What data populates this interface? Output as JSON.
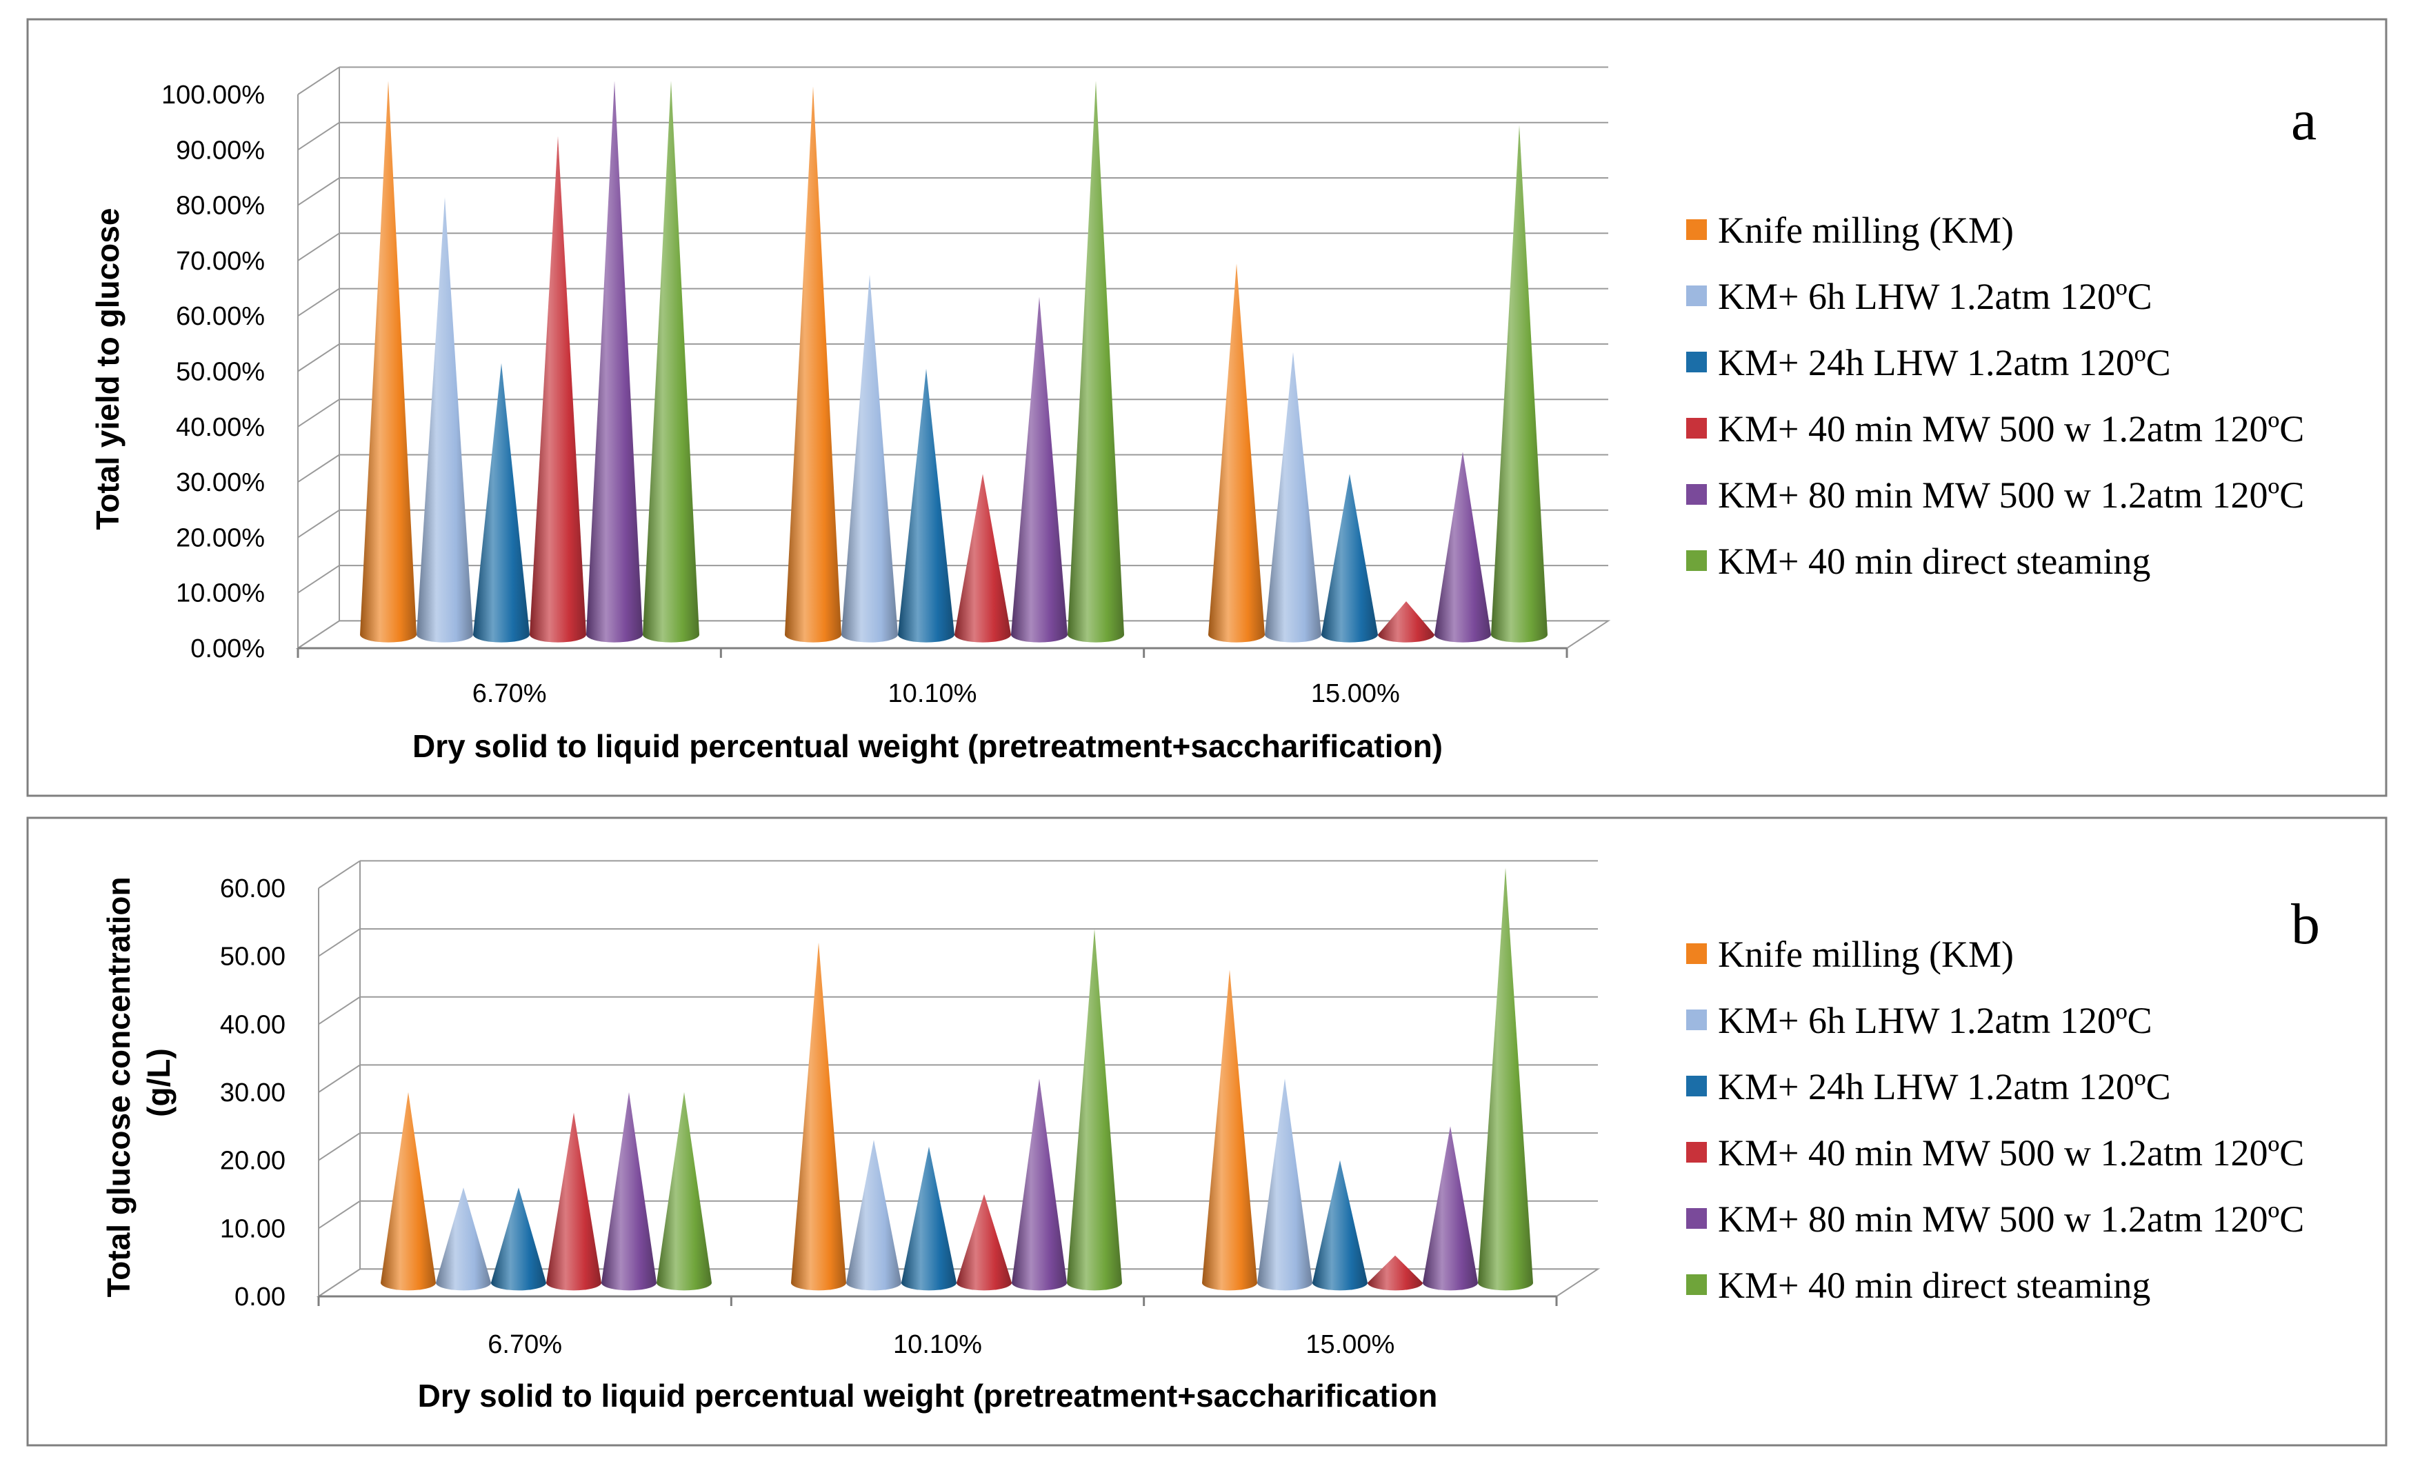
{
  "colors": {
    "Knife milling (KM)": "#F0821E",
    "KM+ 6h LHW 1.2atm 120ºC": "#9DB8E0",
    "KM+ 24h LHW 1.2atm 120ºC": "#1B6EA8",
    "KM+ 40 min MW 500 w 1.2atm 120ºC": "#C8323A",
    "KM+ 80 min MW 500 w 1.2atm 120ºC": "#7A4A9A",
    "KM+ 40 min direct steaming": "#6FA43A",
    "grid": "#9a9a9a",
    "frame": "#7f7f7f"
  },
  "chart_data": [
    {
      "type": "bar",
      "panel_label": "a",
      "categories": [
        "6.70%",
        "10.10%",
        "15.00%"
      ],
      "series": [
        {
          "name": "Knife milling (KM)",
          "values": [
            1.0,
            0.99,
            0.67
          ]
        },
        {
          "name": "KM+ 6h LHW 1.2atm 120ºC",
          "values": [
            0.79,
            0.65,
            0.51
          ]
        },
        {
          "name": "KM+ 24h LHW 1.2atm 120ºC",
          "values": [
            0.49,
            0.48,
            0.29
          ]
        },
        {
          "name": "KM+ 40 min MW 500 w 1.2atm 120ºC",
          "values": [
            0.9,
            0.29,
            0.06
          ]
        },
        {
          "name": "KM+ 80 min MW 500 w 1.2atm 120ºC",
          "values": [
            1.0,
            0.61,
            0.33
          ]
        },
        {
          "name": "KM+ 40 min direct steaming",
          "values": [
            1.0,
            1.0,
            0.92
          ]
        }
      ],
      "ylim": [
        0,
        1
      ],
      "yticks": [
        "0.00%",
        "10.00%",
        "20.00%",
        "30.00%",
        "40.00%",
        "50.00%",
        "60.00%",
        "70.00%",
        "80.00%",
        "90.00%",
        "100.00%"
      ],
      "ylabel": "Total yield to glucose",
      "xlabel": "Dry solid to liquid percentual weight (pretreatment+saccharification)",
      "legend": "right"
    },
    {
      "type": "bar",
      "panel_label": "b",
      "categories": [
        "6.70%",
        "10.10%",
        "15.00%"
      ],
      "series": [
        {
          "name": "Knife milling (KM)",
          "values": [
            28,
            50,
            46
          ]
        },
        {
          "name": "KM+ 6h LHW 1.2atm 120ºC",
          "values": [
            14,
            21,
            30
          ]
        },
        {
          "name": "KM+ 24h LHW 1.2atm 120ºC",
          "values": [
            14,
            20,
            18
          ]
        },
        {
          "name": "KM+ 40 min MW 500 w 1.2atm 120ºC",
          "values": [
            25,
            13,
            4
          ]
        },
        {
          "name": "KM+ 80 min MW 500 w 1.2atm 120ºC",
          "values": [
            28,
            30,
            23
          ]
        },
        {
          "name": "KM+ 40 min direct steaming",
          "values": [
            28,
            52,
            61
          ]
        }
      ],
      "ylim": [
        0,
        60
      ],
      "yticks": [
        "0.00",
        "10.00",
        "20.00",
        "30.00",
        "40.00",
        "50.00",
        "60.00"
      ],
      "ylabel": [
        "Total glucose concentration",
        "(g/L)"
      ],
      "xlabel": "Dry solid to liquid percentual weight (pretreatment+saccharification",
      "legend": "right"
    }
  ]
}
